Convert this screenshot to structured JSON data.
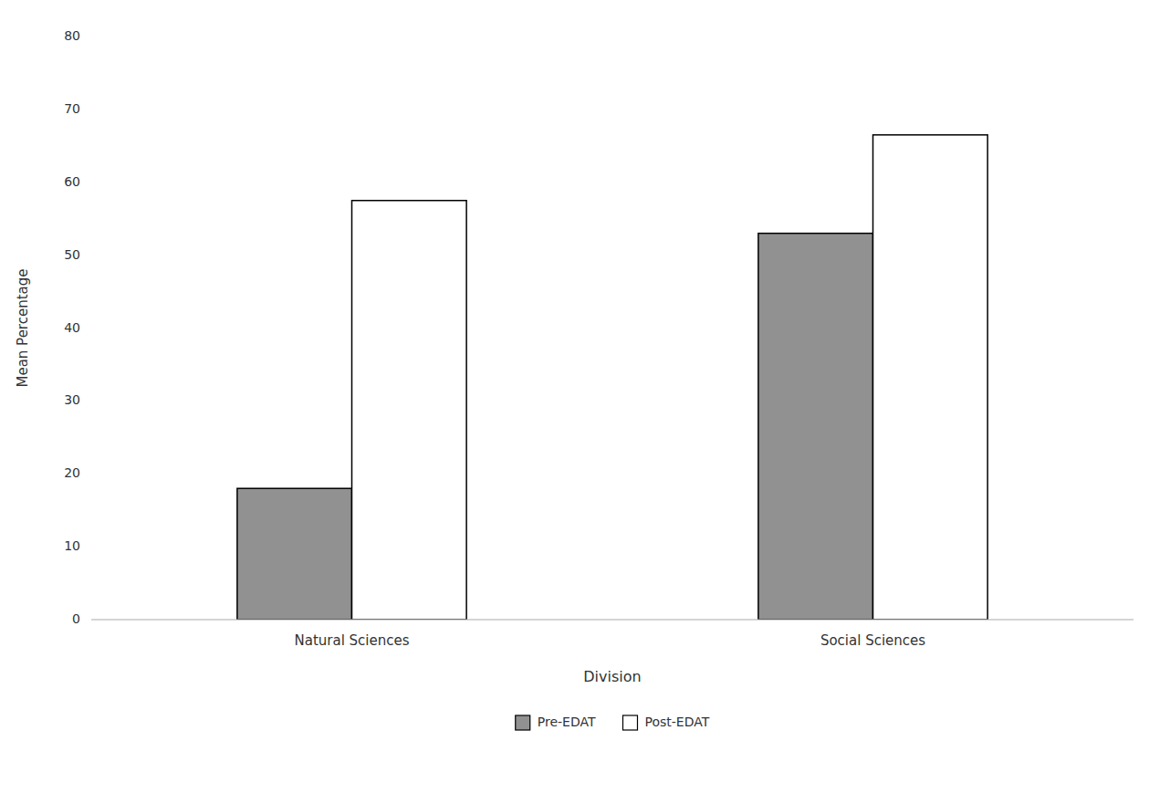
{
  "chart_data": {
    "type": "bar",
    "categories": [
      "Natural Sciences",
      "Social Sciences"
    ],
    "series": [
      {
        "name": "Pre-EDAT",
        "color": "#919191",
        "values": [
          18,
          53
        ]
      },
      {
        "name": "Post-EDAT",
        "color": "#ffffff",
        "values": [
          57.5,
          66.5
        ]
      }
    ],
    "xlabel": "Division",
    "ylabel": "Mean Percentage",
    "ylim": [
      0,
      80
    ],
    "yticks": [
      0,
      10,
      20,
      30,
      40,
      50,
      60,
      70,
      80
    ],
    "grid": false,
    "legend": "bottom"
  }
}
